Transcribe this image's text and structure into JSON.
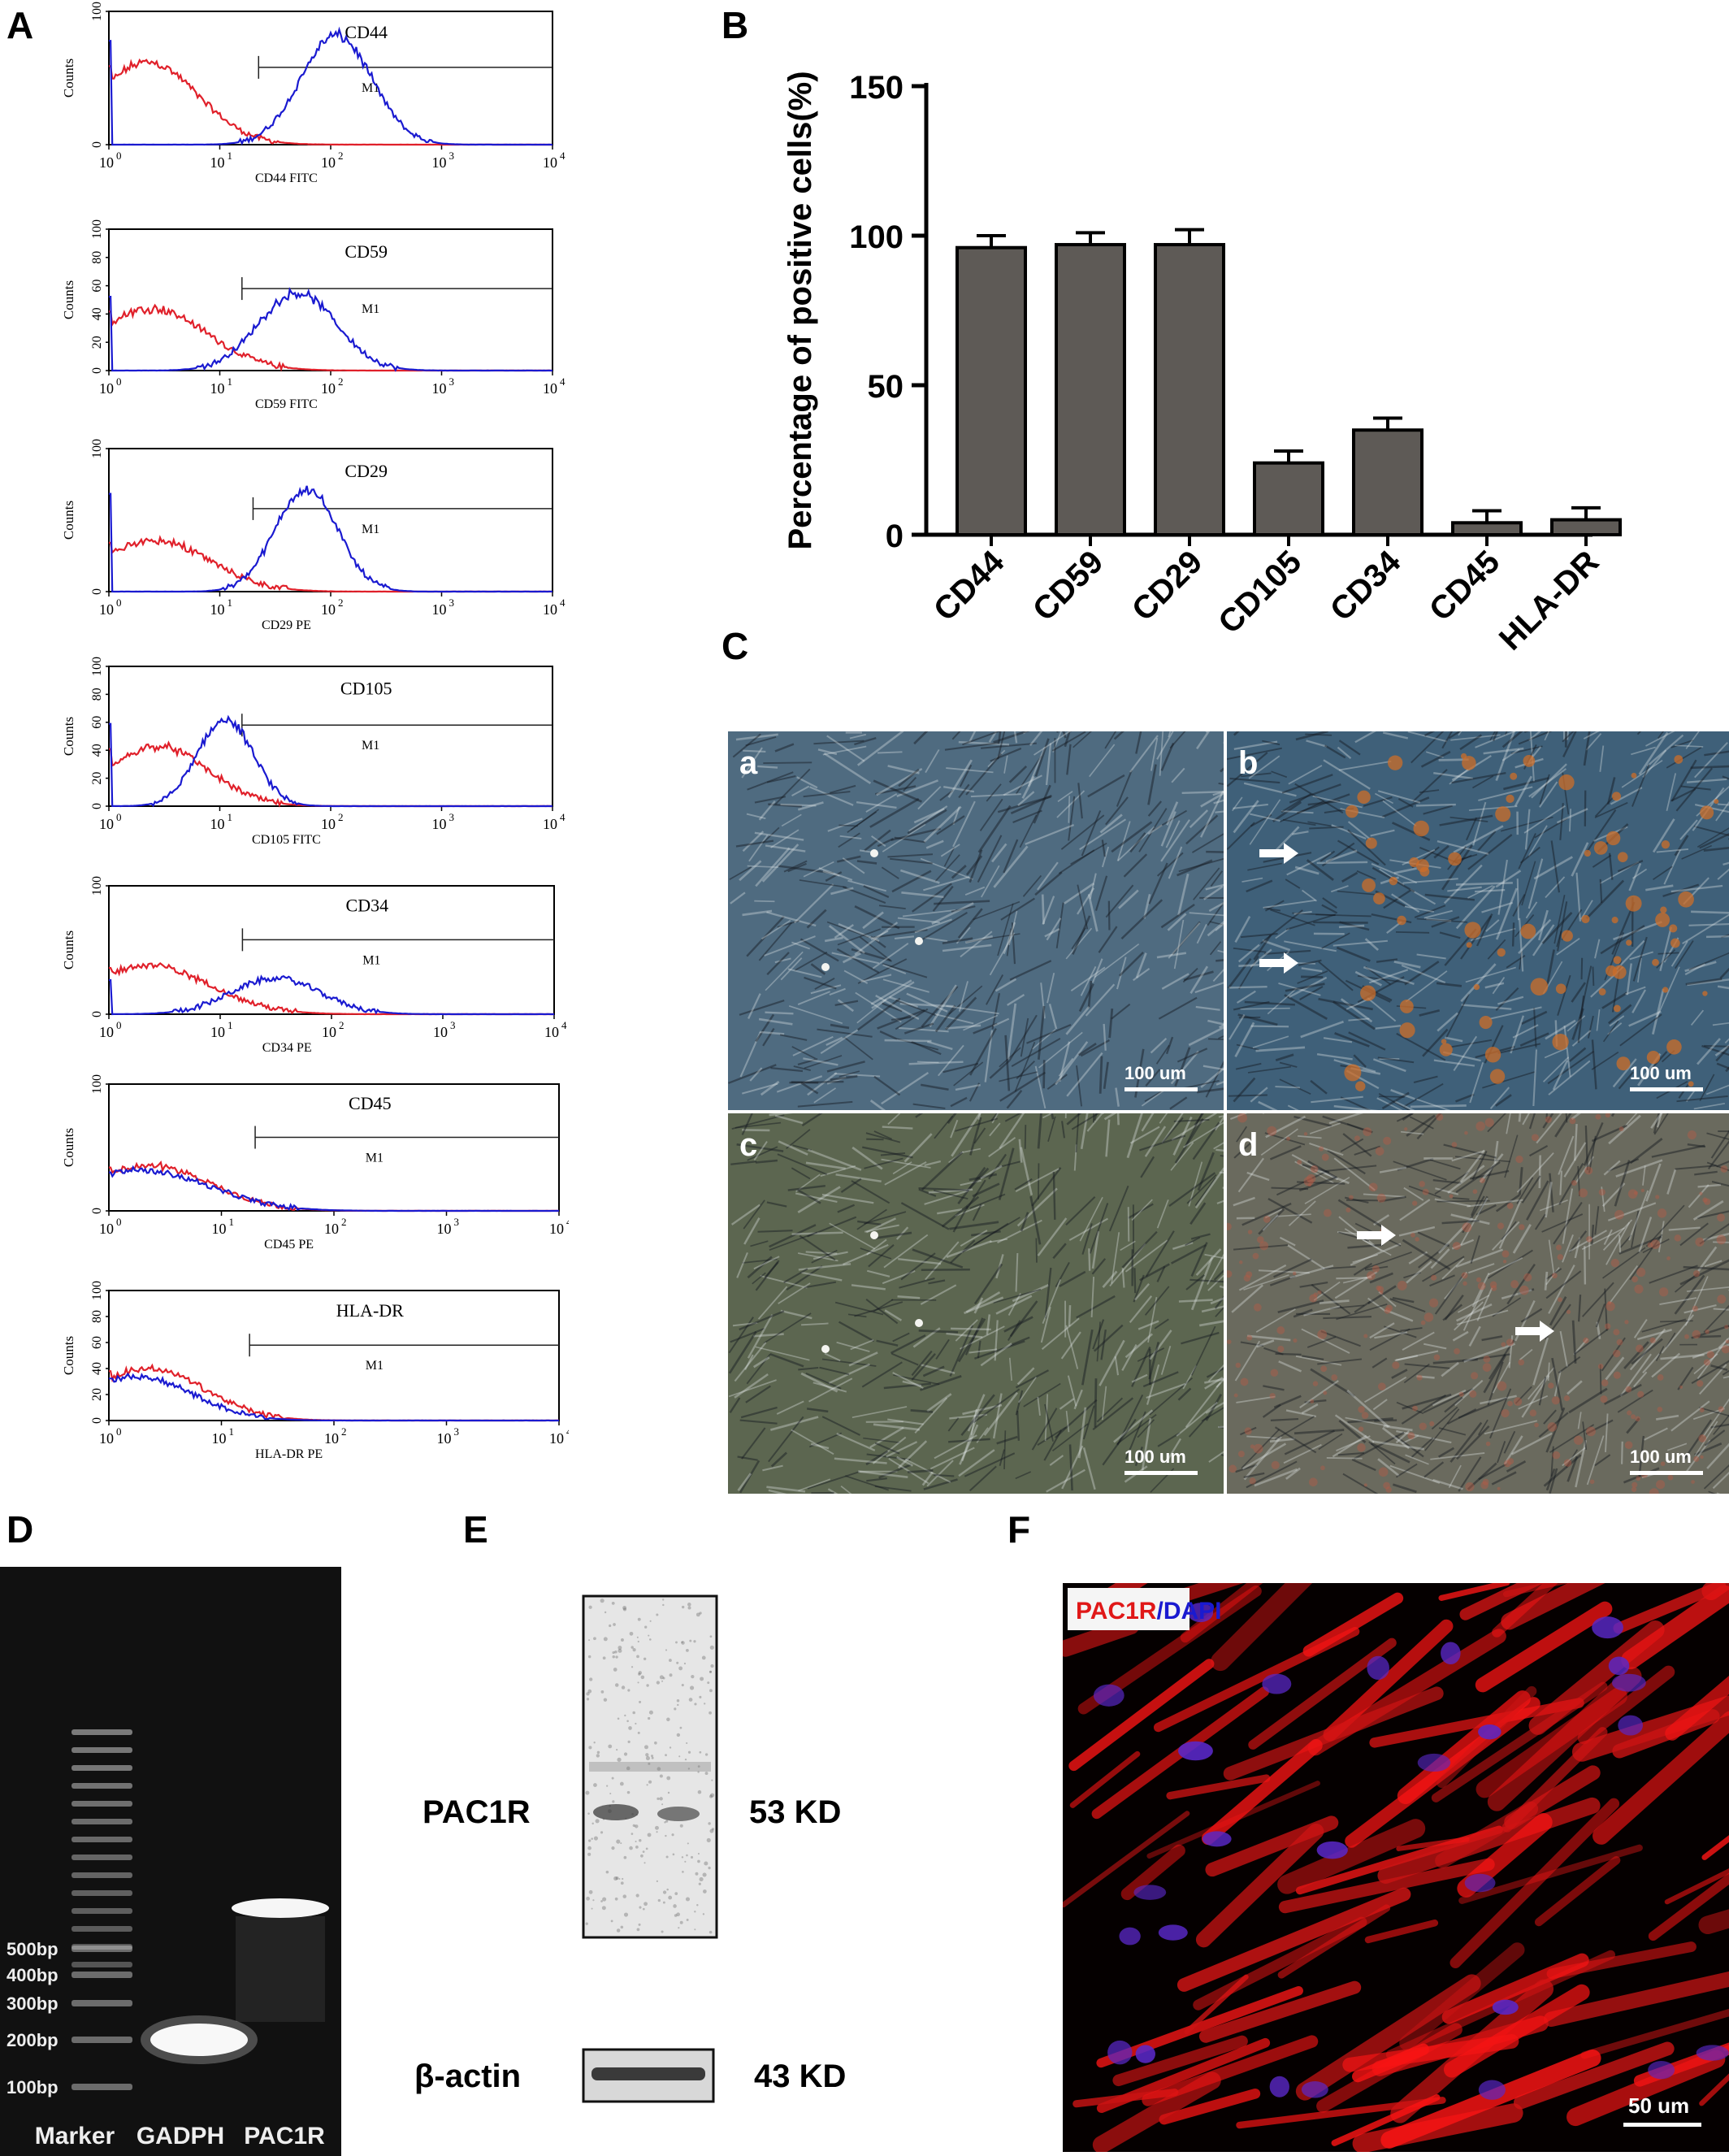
{
  "panel_letters": [
    "A",
    "B",
    "C",
    "D",
    "E",
    "F"
  ],
  "histograms": [
    {
      "marker": "CD44",
      "gate": "M1",
      "xlabel": "CD44 FITC",
      "yticks": [
        "0",
        "100"
      ],
      "red_peak": -0.6,
      "red_height": 0.62,
      "red_width": 0.45,
      "blue_peak": 2.05,
      "blue_height": 0.82,
      "blue_width": 0.32,
      "gate_start": 1.35
    },
    {
      "marker": "CD59",
      "gate": "M1",
      "xlabel": "CD59 FITC",
      "yticks": [
        "0",
        "20",
        "40",
        "60",
        "80",
        "100"
      ],
      "red_peak": -0.55,
      "red_height": 0.44,
      "red_width": 0.5,
      "blue_peak": 1.7,
      "blue_height": 0.55,
      "blue_width": 0.35,
      "gate_start": 1.2
    },
    {
      "marker": "CD29",
      "gate": "M1",
      "xlabel": "CD29 PE",
      "yticks": [
        "0",
        "100"
      ],
      "red_peak": -0.5,
      "red_height": 0.36,
      "red_width": 0.5,
      "blue_peak": 1.78,
      "blue_height": 0.72,
      "blue_width": 0.28,
      "gate_start": 1.3
    },
    {
      "marker": "CD105",
      "gate": "M1",
      "xlabel": "CD105 FITC",
      "yticks": [
        "0",
        "20",
        "40",
        "60",
        "80",
        "100"
      ],
      "red_peak": -0.45,
      "red_height": 0.43,
      "red_width": 0.45,
      "blue_peak": 1.05,
      "blue_height": 0.62,
      "blue_width": 0.25,
      "gate_start": 1.2
    },
    {
      "marker": "CD34",
      "gate": "M1",
      "xlabel": "CD34 PE",
      "yticks": [
        "0",
        "100"
      ],
      "red_peak": -0.6,
      "red_height": 0.38,
      "red_width": 0.55,
      "blue_peak": 1.5,
      "blue_height": 0.28,
      "blue_width": 0.4,
      "gate_start": 1.2
    },
    {
      "marker": "CD45",
      "gate": "M1",
      "xlabel": "CD45 PE",
      "yticks": [
        "0",
        "100"
      ],
      "red_peak": -0.6,
      "red_height": 0.36,
      "red_width": 0.55,
      "blue_peak": -0.7,
      "blue_height": 0.32,
      "blue_width": 0.6,
      "gate_start": 1.3
    },
    {
      "marker": "HLA-DR",
      "gate": "M1",
      "xlabel": "HLA-DR PE",
      "yticks": [
        "0",
        "20",
        "40",
        "60",
        "80",
        "100"
      ],
      "red_peak": -0.6,
      "red_height": 0.4,
      "red_width": 0.5,
      "blue_peak": -0.8,
      "blue_height": 0.34,
      "blue_width": 0.5,
      "gate_start": 1.25
    }
  ],
  "hist_common": {
    "ylabel": "Counts",
    "xticks": [
      "10",
      "10",
      "10",
      "10",
      "10"
    ],
    "xexp": [
      "0",
      "1",
      "2",
      "3",
      "4"
    ],
    "red_color": "#e0202a",
    "blue_color": "#1a1ad0"
  },
  "chart_data": {
    "type": "bar",
    "categories": [
      "CD44",
      "CD59",
      "CD29",
      "CD105",
      "CD34",
      "CD45",
      "HLA-DR"
    ],
    "values": [
      96,
      97,
      97,
      24,
      35,
      4,
      5
    ],
    "errors": [
      4,
      4,
      5,
      4,
      4,
      4,
      4
    ],
    "ylabel": "Percentage of positive cells(%)",
    "ylim": [
      0,
      150
    ],
    "yticks": [
      0,
      50,
      100,
      150
    ],
    "bar_color": "#5e5a56"
  },
  "micrographs": [
    {
      "label": "a",
      "scale": "100 um",
      "bg": "#4f6b80"
    },
    {
      "label": "b",
      "scale": "100 um",
      "bg": "#3f6079"
    },
    {
      "label": "c",
      "scale": "100 um",
      "bg": "#5c6650"
    },
    {
      "label": "d",
      "scale": "100 um",
      "bg": "#6a6a5e"
    }
  ],
  "gel": {
    "ladder": [
      "500bp",
      "400bp",
      "300bp",
      "200bp",
      "100bp"
    ],
    "lanes": [
      "Marker",
      "GADPH",
      "PAC1R"
    ]
  },
  "western": {
    "target_label": "PAC1R",
    "target_size": "53 KD",
    "control_label": "β-actin",
    "control_size": "43 KD"
  },
  "fluor": {
    "label_red": "PAC1R",
    "label_sep": "/",
    "label_blue": "DAPI",
    "scale": "50 um"
  }
}
